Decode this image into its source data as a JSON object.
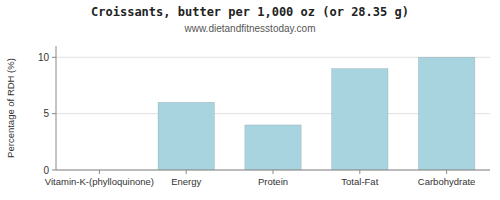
{
  "chart_data": {
    "type": "bar",
    "title": "Croissants, butter per 1,000 oz (or 28.35 g)",
    "subtitle": "www.dietandfitnesstoday.com",
    "categories": [
      "Vitamin-K-(phylloquinone)",
      "Energy",
      "Protein",
      "Total-Fat",
      "Carbohydrate"
    ],
    "values": [
      0,
      6.0,
      4.0,
      9.0,
      10.0
    ],
    "color": "#a8d4e0",
    "ylabel": "Percentage of RDH (%)",
    "ylim": [
      0,
      11
    ],
    "yticks": [
      0,
      5,
      10
    ],
    "grid": true
  }
}
